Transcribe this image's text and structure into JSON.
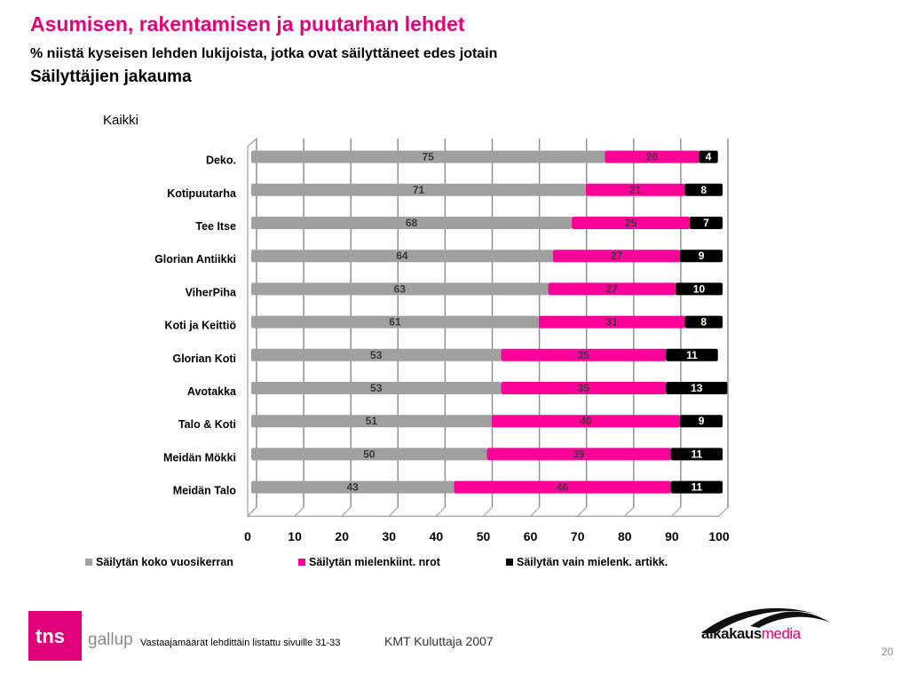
{
  "header": {
    "title": "Asumisen, rakentamisen ja puutarhan lehdet",
    "subtitle": "% niistä kyseisen lehden lukijoista, jotka ovat säilyttäneet edes jotain",
    "subtitle2": "Säilyttäjien jakauma"
  },
  "chart_data": {
    "type": "bar",
    "orientation": "horizontal",
    "stacked": true,
    "title": "Kaikki",
    "categories": [
      "Deko.",
      "Kotipuutarha",
      "Tee Itse",
      "Glorian Antiikki",
      "ViherPiha",
      "Koti ja Keittiö",
      "Glorian Koti",
      "Avotakka",
      "Talo & Koti",
      "Meidän Mökki",
      "Meidän Talo"
    ],
    "series": [
      {
        "name": "Säilytän koko vuosikerran",
        "color": "#a0a0a0",
        "values": [
          75,
          71,
          68,
          64,
          63,
          61,
          53,
          53,
          51,
          50,
          43
        ]
      },
      {
        "name": "Säilytän mielenkiint. nrot",
        "color": "#ff0099",
        "values": [
          20,
          21,
          25,
          27,
          27,
          31,
          35,
          35,
          40,
          39,
          46
        ]
      },
      {
        "name": "Säilytän vain mielenk. artikk.",
        "color": "#000000",
        "values": [
          4,
          8,
          7,
          9,
          10,
          8,
          11,
          13,
          9,
          11,
          11
        ]
      }
    ],
    "xlim": [
      0,
      100
    ],
    "xticks": [
      "0",
      "10",
      "20",
      "30",
      "40",
      "50",
      "60",
      "70",
      "80",
      "90",
      "100"
    ],
    "grid": true,
    "legend": "bottom"
  },
  "footer": {
    "note": "Vastaajamäärät lehdittäin listattu sivuille 31-33",
    "source": "KMT Kuluttaja 2007",
    "page": "20",
    "logo_tns": "tns gallup",
    "logo_aikakausmedia": "aikakausmedia"
  }
}
